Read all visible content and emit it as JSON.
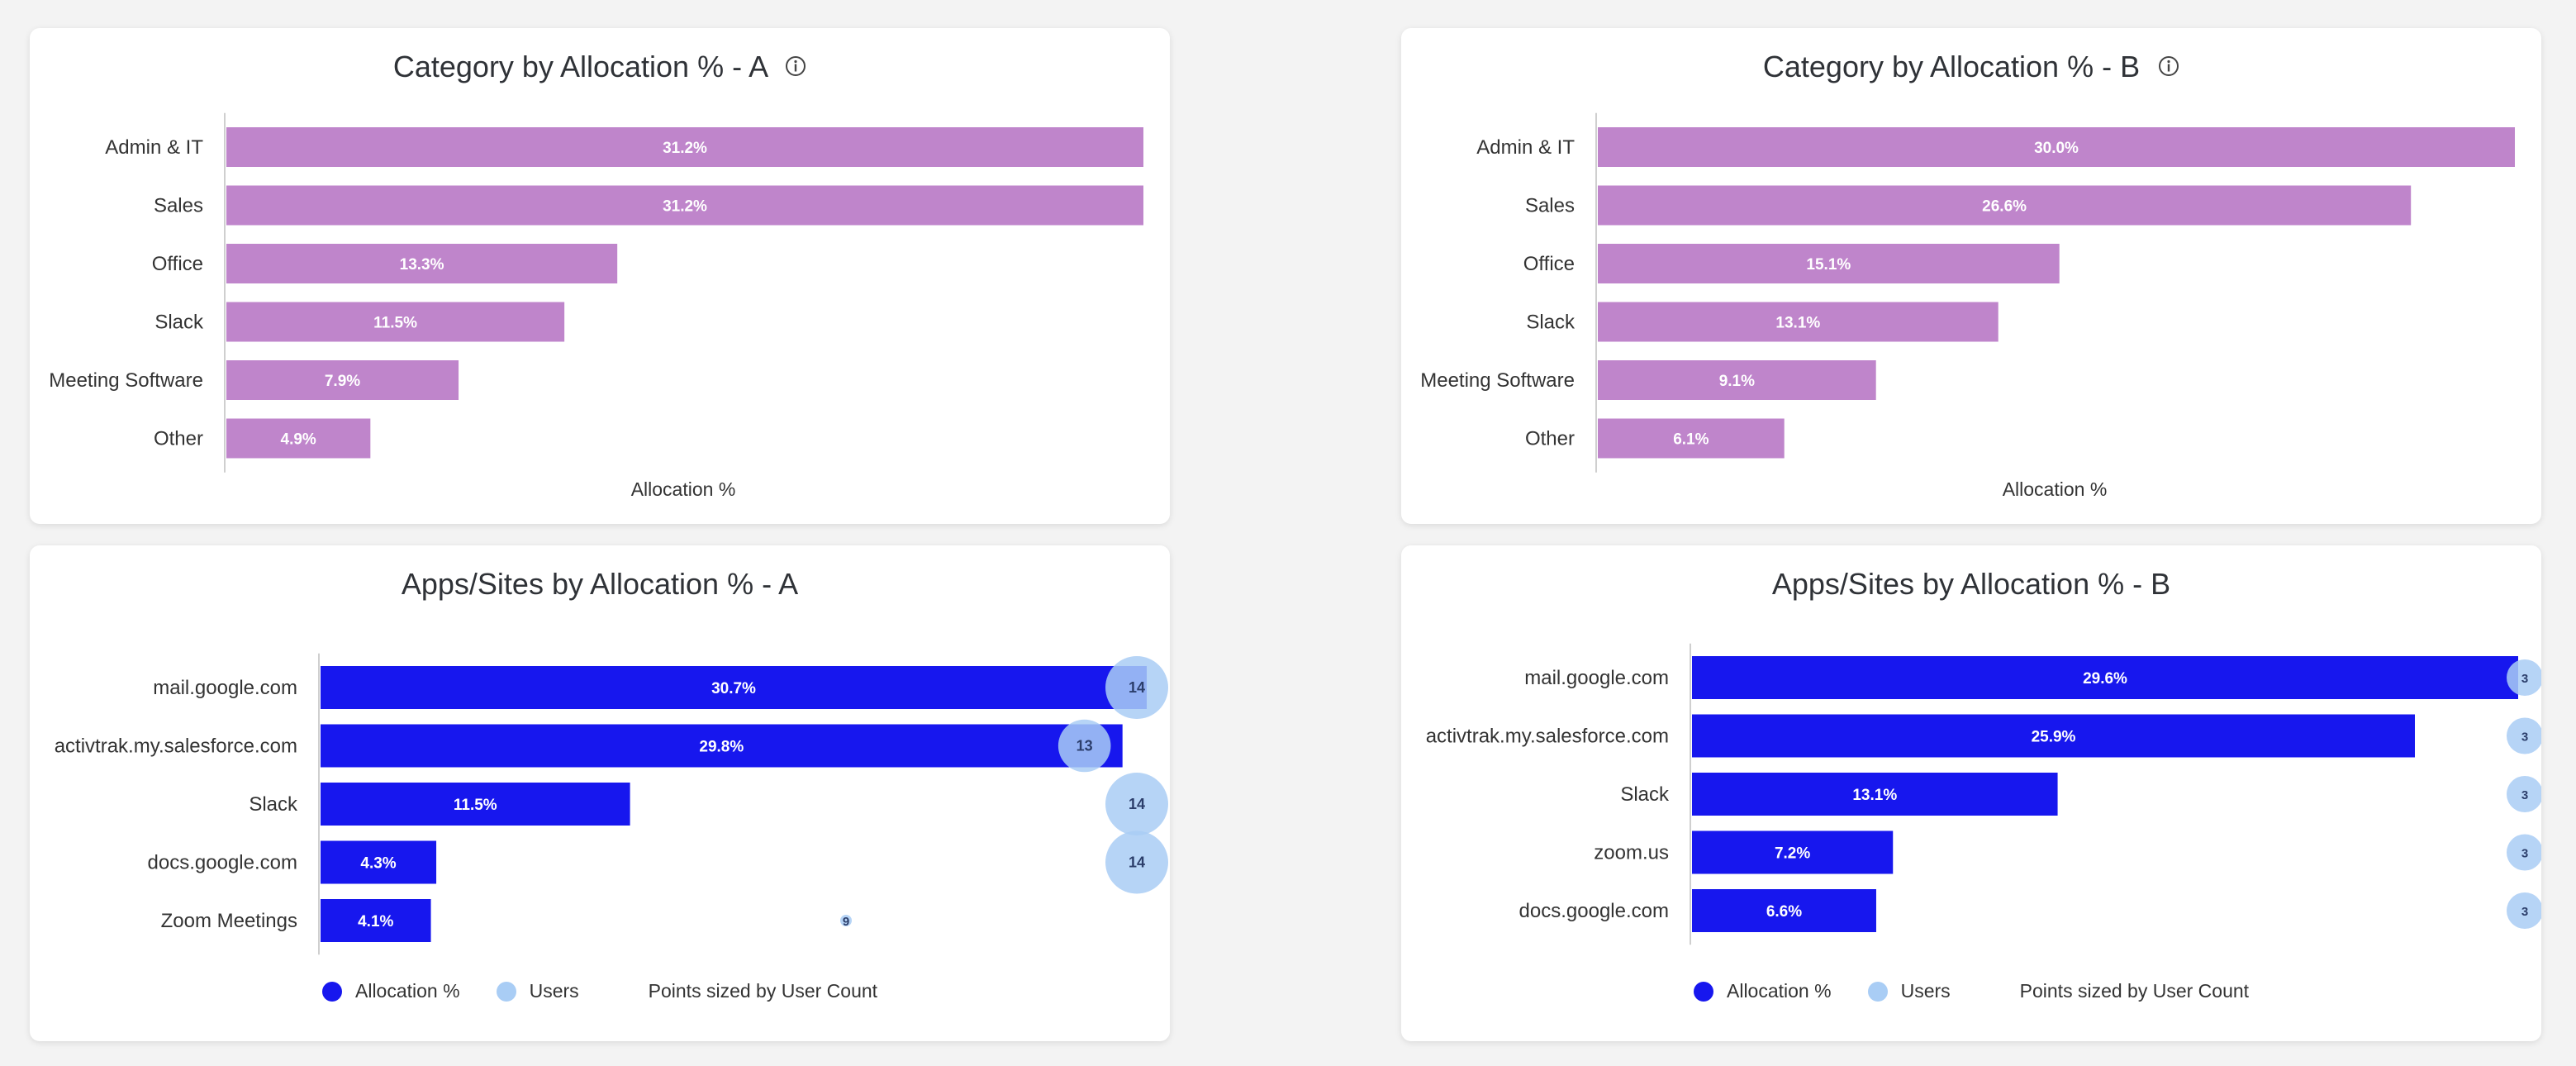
{
  "colors": {
    "category_bar": "#bf85cb",
    "apps_bar": "#1717ee",
    "users_bubble": "#a9cdf5",
    "bubble_text": "#2c3e6b"
  },
  "legend": {
    "allocation_label": "Allocation %",
    "users_label": "Users",
    "note": "Points sized by User Count"
  },
  "chart_data": [
    {
      "type": "bar",
      "orientation": "horizontal",
      "title": "Category by Allocation % - A",
      "xlabel": "Allocation %",
      "categories": [
        "Admin & IT",
        "Sales",
        "Office",
        "Slack",
        "Meeting Software",
        "Other"
      ],
      "values": [
        31.2,
        31.2,
        13.3,
        11.5,
        7.9,
        4.9
      ],
      "labels": [
        "31.2%",
        "31.2%",
        "13.3%",
        "11.5%",
        "7.9%",
        "4.9%"
      ]
    },
    {
      "type": "bar",
      "orientation": "horizontal",
      "title": "Category by Allocation % - B",
      "xlabel": "Allocation %",
      "categories": [
        "Admin & IT",
        "Sales",
        "Office",
        "Slack",
        "Meeting Software",
        "Other"
      ],
      "values": [
        30.0,
        26.6,
        15.1,
        13.1,
        9.1,
        6.1
      ],
      "labels": [
        "30.0%",
        "26.6%",
        "15.1%",
        "13.1%",
        "9.1%",
        "6.1%"
      ]
    },
    {
      "type": "bar",
      "orientation": "horizontal",
      "title": "Apps/Sites by Allocation % - A",
      "categories": [
        "mail.google.com",
        "activtrak.my.salesforce.com",
        "Slack",
        "docs.google.com",
        "Zoom Meetings"
      ],
      "series": [
        {
          "name": "Allocation %",
          "values": [
            30.7,
            29.8,
            11.5,
            4.3,
            4.1
          ],
          "labels": [
            "30.7%",
            "29.8%",
            "11.5%",
            "4.3%",
            "4.1%"
          ]
        },
        {
          "name": "Users",
          "values": [
            14,
            13,
            14,
            14,
            9
          ],
          "labels": [
            "14",
            "13",
            "14",
            "14",
            "9"
          ]
        }
      ]
    },
    {
      "type": "bar",
      "orientation": "horizontal",
      "title": "Apps/Sites by Allocation % - B",
      "categories": [
        "mail.google.com",
        "activtrak.my.salesforce.com",
        "Slack",
        "zoom.us",
        "docs.google.com"
      ],
      "series": [
        {
          "name": "Allocation %",
          "values": [
            29.6,
            25.9,
            13.1,
            7.2,
            6.6
          ],
          "labels": [
            "29.6%",
            "25.9%",
            "13.1%",
            "7.2%",
            "6.6%"
          ]
        },
        {
          "name": "Users",
          "values": [
            3,
            3,
            3,
            3,
            3
          ],
          "labels": [
            "3",
            "3",
            "3",
            "3",
            "3"
          ]
        }
      ]
    }
  ]
}
